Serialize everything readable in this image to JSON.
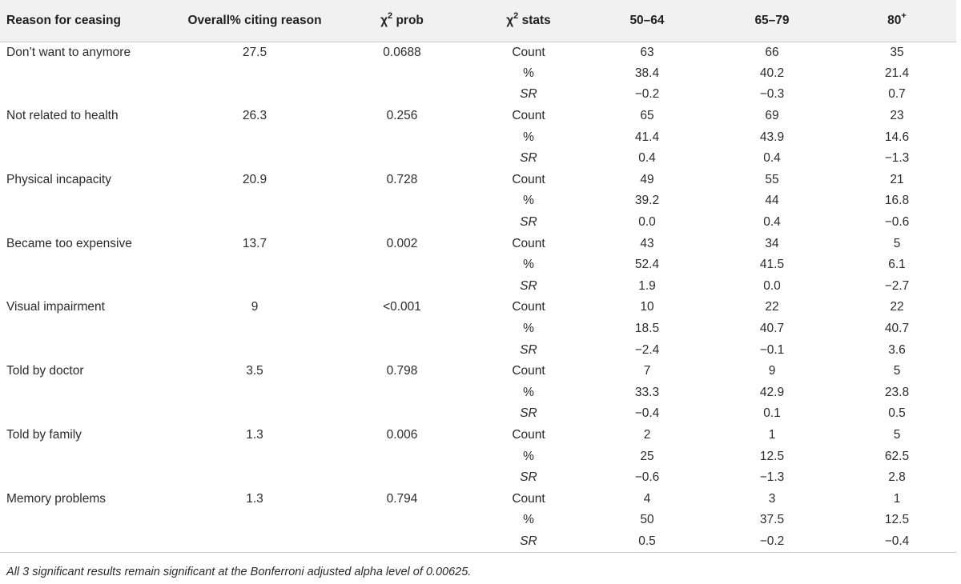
{
  "table": {
    "headers": {
      "reason": "Reason for ceasing",
      "overall": "Overall% citing reason",
      "chi_prob": "prob",
      "chi_stats": "stats",
      "chi_symbol": "χ",
      "chi_exponent": "2",
      "age1": "50–64",
      "age2": "65–79",
      "age3_base": "80",
      "age3_sup": "+"
    },
    "groups": [
      {
        "reason": "Don’t want to anymore",
        "overall": "27.5",
        "prob": "0.0688",
        "rows": [
          {
            "stat": "Count",
            "a": "63",
            "b": "66",
            "c": "35"
          },
          {
            "stat": "%",
            "a": "38.4",
            "b": "40.2",
            "c": "21.4"
          },
          {
            "stat": "SR",
            "a": "−0.2",
            "b": "−0.3",
            "c": "0.7"
          }
        ]
      },
      {
        "reason": "Not related to health",
        "overall": "26.3",
        "prob": "0.256",
        "rows": [
          {
            "stat": "Count",
            "a": "65",
            "b": "69",
            "c": "23"
          },
          {
            "stat": "%",
            "a": "41.4",
            "b": "43.9",
            "c": "14.6"
          },
          {
            "stat": "SR",
            "a": "0.4",
            "b": "0.4",
            "c": "−1.3"
          }
        ]
      },
      {
        "reason": "Physical incapacity",
        "overall": "20.9",
        "prob": "0.728",
        "rows": [
          {
            "stat": "Count",
            "a": "49",
            "b": "55",
            "c": "21"
          },
          {
            "stat": "%",
            "a": "39.2",
            "b": "44",
            "c": "16.8"
          },
          {
            "stat": "SR",
            "a": "0.0",
            "b": "0.4",
            "c": "−0.6"
          }
        ]
      },
      {
        "reason": "Became too expensive",
        "overall": "13.7",
        "prob": "0.002",
        "rows": [
          {
            "stat": "Count",
            "a": "43",
            "b": "34",
            "c": "5"
          },
          {
            "stat": "%",
            "a": "52.4",
            "b": "41.5",
            "c": "6.1"
          },
          {
            "stat": "SR",
            "a": "1.9",
            "b": "0.0",
            "c": "−2.7"
          }
        ]
      },
      {
        "reason": "Visual impairment",
        "overall": "9",
        "prob": "<0.001",
        "rows": [
          {
            "stat": "Count",
            "a": "10",
            "b": "22",
            "c": "22"
          },
          {
            "stat": "%",
            "a": "18.5",
            "b": "40.7",
            "c": "40.7"
          },
          {
            "stat": "SR",
            "a": "−2.4",
            "b": "−0.1",
            "c": "3.6"
          }
        ]
      },
      {
        "reason": "Told by doctor",
        "overall": "3.5",
        "prob": "0.798",
        "rows": [
          {
            "stat": "Count",
            "a": "7",
            "b": "9",
            "c": "5"
          },
          {
            "stat": "%",
            "a": "33.3",
            "b": "42.9",
            "c": "23.8"
          },
          {
            "stat": "SR",
            "a": "−0.4",
            "b": "0.1",
            "c": "0.5"
          }
        ]
      },
      {
        "reason": "Told by family",
        "overall": "1.3",
        "prob": "0.006",
        "rows": [
          {
            "stat": "Count",
            "a": "2",
            "b": "1",
            "c": "5"
          },
          {
            "stat": "%",
            "a": "25",
            "b": "12.5",
            "c": "62.5"
          },
          {
            "stat": "SR",
            "a": "−0.6",
            "b": "−1.3",
            "c": "2.8"
          }
        ]
      },
      {
        "reason": "Memory problems",
        "overall": "1.3",
        "prob": "0.794",
        "rows": [
          {
            "stat": "Count",
            "a": "4",
            "b": "3",
            "c": "1"
          },
          {
            "stat": "%",
            "a": "50",
            "b": "37.5",
            "c": "12.5"
          },
          {
            "stat": "SR",
            "a": "0.5",
            "b": "−0.2",
            "c": "−0.4"
          }
        ]
      }
    ]
  },
  "footnote": "All 3 significant results remain significant at the Bonferroni adjusted alpha level of 0.00625."
}
